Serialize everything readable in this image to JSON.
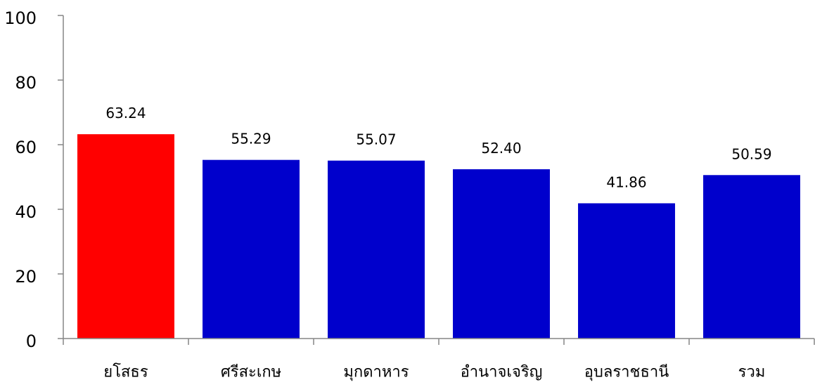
{
  "chart_data": {
    "type": "bar",
    "categories": [
      "ยโสธร",
      "ศรีสะเกษ",
      "มุกดาหาร",
      "อำนาจเจริญ",
      "อุบลราชธานี",
      "รวม"
    ],
    "values": [
      63.24,
      55.29,
      55.07,
      52.4,
      41.86,
      50.59
    ],
    "data_labels": [
      "63.24",
      "55.29",
      "55.07",
      "52.40",
      "41.86",
      "50.59"
    ],
    "bar_colors": [
      "#FF0000",
      "#0000CC",
      "#0000CC",
      "#0000CC",
      "#0000CC",
      "#0000CC"
    ],
    "ylim": [
      0,
      100
    ],
    "yticks": [
      0,
      20,
      40,
      60,
      80,
      100
    ],
    "axis_color": "#868686",
    "grid": false
  }
}
